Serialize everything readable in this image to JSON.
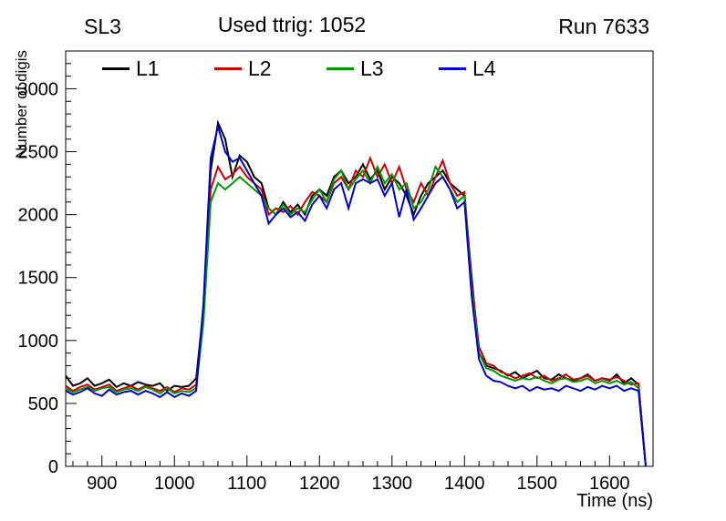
{
  "chart_data": {
    "type": "line",
    "title": "SL3",
    "center_title": "Used ttrig: 1052",
    "right_title": "Run 7633",
    "xlabel": "Time (ns)",
    "ylabel": "Number of digis",
    "xlim": [
      850,
      1660
    ],
    "ylim": [
      0,
      3300
    ],
    "x_ticks": [
      900,
      1000,
      1100,
      1200,
      1300,
      1400,
      1500,
      1600
    ],
    "y_ticks": [
      0,
      500,
      1000,
      1500,
      2000,
      2500,
      3000
    ],
    "x_minor_step": 20,
    "y_minor_step": 100,
    "grid": false,
    "legend_position": "top-inside",
    "x": [
      850,
      860,
      870,
      880,
      890,
      900,
      910,
      920,
      930,
      940,
      950,
      960,
      970,
      980,
      990,
      1000,
      1010,
      1020,
      1030,
      1040,
      1050,
      1060,
      1070,
      1080,
      1090,
      1100,
      1110,
      1120,
      1130,
      1140,
      1150,
      1160,
      1170,
      1180,
      1190,
      1200,
      1210,
      1220,
      1230,
      1240,
      1250,
      1260,
      1270,
      1280,
      1290,
      1300,
      1310,
      1320,
      1330,
      1340,
      1350,
      1360,
      1370,
      1380,
      1390,
      1400,
      1410,
      1420,
      1430,
      1440,
      1450,
      1460,
      1470,
      1480,
      1490,
      1500,
      1510,
      1520,
      1530,
      1540,
      1550,
      1560,
      1570,
      1580,
      1590,
      1600,
      1610,
      1620,
      1630,
      1640,
      1650
    ],
    "series": [
      {
        "name": "L1",
        "color": "#000000",
        "values": [
          720,
          640,
          660,
          700,
          640,
          660,
          690,
          630,
          660,
          640,
          670,
          650,
          640,
          660,
          600,
          640,
          630,
          640,
          700,
          1250,
          2350,
          2730,
          2600,
          2300,
          2470,
          2420,
          2300,
          2250,
          2050,
          2000,
          2100,
          2020,
          2080,
          2000,
          2150,
          2200,
          2150,
          2300,
          2350,
          2250,
          2300,
          2400,
          2280,
          2350,
          2200,
          2300,
          2250,
          2150,
          2000,
          2150,
          2250,
          2300,
          2350,
          2250,
          2200,
          2150,
          1500,
          900,
          800,
          780,
          760,
          720,
          750,
          700,
          730,
          760,
          700,
          690,
          730,
          700,
          680,
          700,
          730,
          680,
          700,
          680,
          730,
          660,
          700,
          650,
          0
        ]
      },
      {
        "name": "L2",
        "color": "#cc0000",
        "values": [
          640,
          600,
          630,
          650,
          610,
          630,
          650,
          600,
          620,
          640,
          610,
          640,
          620,
          600,
          630,
          590,
          620,
          610,
          650,
          1200,
          2200,
          2380,
          2280,
          2320,
          2380,
          2300,
          2250,
          2200,
          2000,
          2050,
          2020,
          2070,
          2000,
          2100,
          2180,
          2150,
          2100,
          2250,
          2300,
          2200,
          2350,
          2300,
          2450,
          2300,
          2400,
          2250,
          2380,
          2200,
          2100,
          2250,
          2150,
          2300,
          2430,
          2250,
          2150,
          2180,
          1450,
          950,
          820,
          800,
          750,
          730,
          700,
          720,
          740,
          700,
          720,
          680,
          700,
          730,
          690,
          700,
          720,
          680,
          700,
          690,
          710,
          680,
          650,
          660,
          0
        ]
      },
      {
        "name": "L3",
        "color": "#009900",
        "values": [
          620,
          590,
          610,
          630,
          600,
          620,
          630,
          590,
          610,
          620,
          600,
          630,
          610,
          580,
          620,
          580,
          600,
          590,
          620,
          1150,
          2100,
          2250,
          2200,
          2250,
          2300,
          2250,
          2200,
          2150,
          2050,
          2000,
          2080,
          2000,
          2050,
          2020,
          2120,
          2200,
          2100,
          2280,
          2350,
          2200,
          2280,
          2350,
          2250,
          2380,
          2250,
          2320,
          2200,
          2250,
          2050,
          2100,
          2200,
          2380,
          2300,
          2200,
          2100,
          2150,
          1400,
          900,
          780,
          760,
          720,
          700,
          680,
          700,
          690,
          710,
          680,
          660,
          690,
          700,
          670,
          680,
          700,
          660,
          680,
          660,
          680,
          650,
          670,
          620,
          0
        ]
      },
      {
        "name": "L4",
        "color": "#0000cc",
        "values": [
          600,
          570,
          590,
          620,
          580,
          560,
          610,
          570,
          590,
          600,
          570,
          600,
          580,
          550,
          590,
          550,
          580,
          560,
          600,
          1300,
          2450,
          2700,
          2500,
          2420,
          2450,
          2350,
          2250,
          2150,
          1930,
          2000,
          2050,
          1980,
          2020,
          1950,
          2080,
          2150,
          2050,
          2200,
          2250,
          2050,
          2250,
          2280,
          2250,
          2280,
          2150,
          2250,
          1980,
          2200,
          1960,
          2050,
          2150,
          2250,
          2300,
          2200,
          2050,
          2100,
          1350,
          850,
          720,
          680,
          670,
          640,
          620,
          640,
          600,
          630,
          610,
          620,
          600,
          640,
          620,
          600,
          630,
          610,
          640,
          620,
          640,
          600,
          620,
          600,
          0
        ]
      }
    ]
  }
}
